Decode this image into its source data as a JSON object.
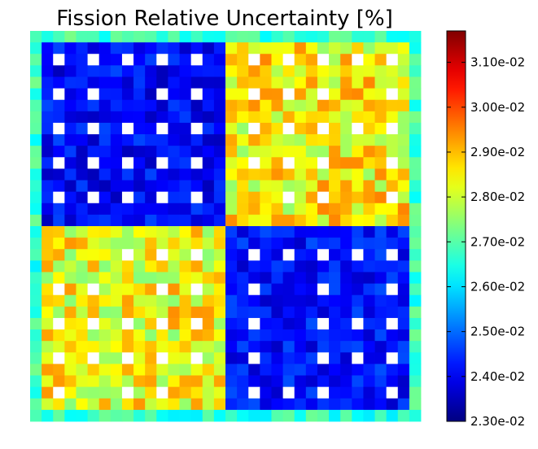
{
  "chart_data": {
    "type": "heatmap",
    "title": "Fission Relative Uncertainty [%]",
    "grid_rows": 34,
    "grid_cols": 34,
    "colormap": "jet",
    "vmin": 0.023,
    "vmax": 0.0317,
    "colorbar": {
      "placement": "right",
      "ticks": [
        {
          "value": 0.031,
          "label": "3.10e-02"
        },
        {
          "value": 0.03,
          "label": "3.00e-02"
        },
        {
          "value": 0.029,
          "label": "2.90e-02"
        },
        {
          "value": 0.028,
          "label": "2.80e-02"
        },
        {
          "value": 0.027,
          "label": "2.70e-02"
        },
        {
          "value": 0.026,
          "label": "2.60e-02"
        },
        {
          "value": 0.025,
          "label": "2.50e-02"
        },
        {
          "value": 0.024,
          "label": "2.40e-02"
        },
        {
          "value": 0.023,
          "label": "2.30e-02"
        }
      ]
    },
    "quadrants": [
      {
        "position": "top-left",
        "mean": 0.0241,
        "spread": 0.0006
      },
      {
        "position": "top-right",
        "mean": 0.0285,
        "spread": 0.001
      },
      {
        "position": "bottom-left",
        "mean": 0.0284,
        "spread": 0.001
      },
      {
        "position": "bottom-right",
        "mean": 0.0242,
        "spread": 0.0006
      }
    ],
    "reflector_value": 0.0267,
    "empty_cell_color": "#ffffff",
    "colors": {
      "background": "#ffffff",
      "text": "#000000",
      "frame": "#000000"
    }
  }
}
